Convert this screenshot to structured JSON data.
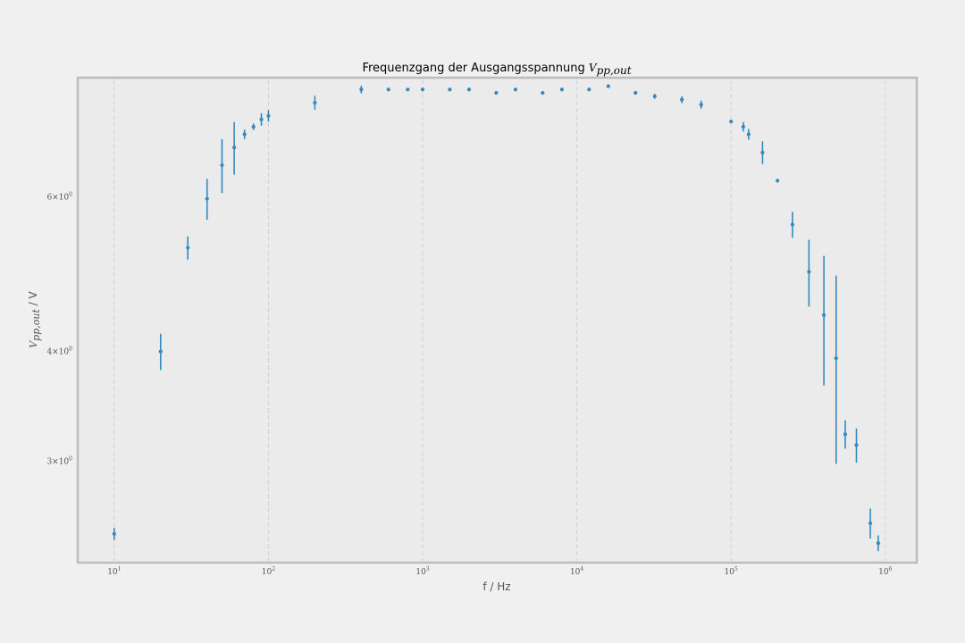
{
  "chart_data": {
    "type": "scatter",
    "title_text": "Frequenzgang der Ausgangsspannung ",
    "title_math": "V",
    "title_math_sub": "pp,out",
    "xlabel": "f / Hz",
    "ylabel_math": "V",
    "ylabel_math_sub": "pp,out",
    "ylabel_unit": " / V",
    "x_scale": "log",
    "y_scale": "log",
    "xlim": [
      5.8,
      1600000
    ],
    "ylim": [
      2.3,
      8.2
    ],
    "grid": "x-axis dashed",
    "x_ticks": [
      {
        "value": 10,
        "base": "10",
        "exp": "1"
      },
      {
        "value": 100,
        "base": "10",
        "exp": "2"
      },
      {
        "value": 1000,
        "base": "10",
        "exp": "3"
      },
      {
        "value": 10000,
        "base": "10",
        "exp": "4"
      },
      {
        "value": 100000,
        "base": "10",
        "exp": "5"
      },
      {
        "value": 1000000,
        "base": "10",
        "exp": "6"
      }
    ],
    "y_ticks": [
      {
        "value": 3,
        "mant": "3",
        "base": "10",
        "exp": "0"
      },
      {
        "value": 4,
        "mant": "4",
        "base": "10",
        "exp": "0"
      },
      {
        "value": 6,
        "mant": "6",
        "base": "10",
        "exp": "0"
      }
    ],
    "color": "#348abd",
    "series": [
      {
        "points": [
          {
            "x": 10,
            "y": 2.48,
            "err": 0.04
          },
          {
            "x": 20,
            "y": 4.0,
            "err": 0.19
          },
          {
            "x": 30,
            "y": 5.25,
            "err": 0.16
          },
          {
            "x": 40,
            "y": 5.97,
            "err": 0.32
          },
          {
            "x": 50,
            "y": 6.52,
            "err": 0.46
          },
          {
            "x": 60,
            "y": 6.83,
            "err": 0.47
          },
          {
            "x": 70,
            "y": 7.07,
            "err": 0.09
          },
          {
            "x": 80,
            "y": 7.21,
            "err": 0.06
          },
          {
            "x": 90,
            "y": 7.35,
            "err": 0.12
          },
          {
            "x": 100,
            "y": 7.42,
            "err": 0.11
          },
          {
            "x": 200,
            "y": 7.68,
            "err": 0.14
          },
          {
            "x": 400,
            "y": 7.95,
            "err": 0.08
          },
          {
            "x": 600,
            "y": 7.95,
            "err": 0.01
          },
          {
            "x": 800,
            "y": 7.95,
            "err": 0.01
          },
          {
            "x": 1000,
            "y": 7.95,
            "err": 0.01
          },
          {
            "x": 1500,
            "y": 7.95,
            "err": 0.02
          },
          {
            "x": 2000,
            "y": 7.95,
            "err": 0.02
          },
          {
            "x": 3000,
            "y": 7.88,
            "err": 0.03
          },
          {
            "x": 4000,
            "y": 7.95,
            "err": 0.02
          },
          {
            "x": 6000,
            "y": 7.88,
            "err": 0.01
          },
          {
            "x": 8000,
            "y": 7.95,
            "err": 0.03
          },
          {
            "x": 12000,
            "y": 7.95,
            "err": 0.02
          },
          {
            "x": 16000,
            "y": 8.02,
            "err": 0.02
          },
          {
            "x": 24000,
            "y": 7.88,
            "err": 0.03
          },
          {
            "x": 32000,
            "y": 7.81,
            "err": 0.05
          },
          {
            "x": 48000,
            "y": 7.74,
            "err": 0.07
          },
          {
            "x": 64000,
            "y": 7.64,
            "err": 0.08
          },
          {
            "x": 100000,
            "y": 7.31,
            "err": 0.02
          },
          {
            "x": 120000,
            "y": 7.21,
            "err": 0.09
          },
          {
            "x": 130000,
            "y": 7.07,
            "err": 0.1
          },
          {
            "x": 160000,
            "y": 6.74,
            "err": 0.2
          },
          {
            "x": 200000,
            "y": 6.26,
            "err": 0.03
          },
          {
            "x": 250000,
            "y": 5.58,
            "err": 0.19
          },
          {
            "x": 320000,
            "y": 4.93,
            "err": 0.43
          },
          {
            "x": 400000,
            "y": 4.4,
            "err": 0.74
          },
          {
            "x": 480000,
            "y": 3.93,
            "err": 0.95
          },
          {
            "x": 550000,
            "y": 3.22,
            "err": 0.12
          },
          {
            "x": 650000,
            "y": 3.13,
            "err": 0.14
          },
          {
            "x": 800000,
            "y": 2.55,
            "err": 0.1
          },
          {
            "x": 900000,
            "y": 2.42,
            "err": 0.05
          }
        ]
      }
    ]
  }
}
